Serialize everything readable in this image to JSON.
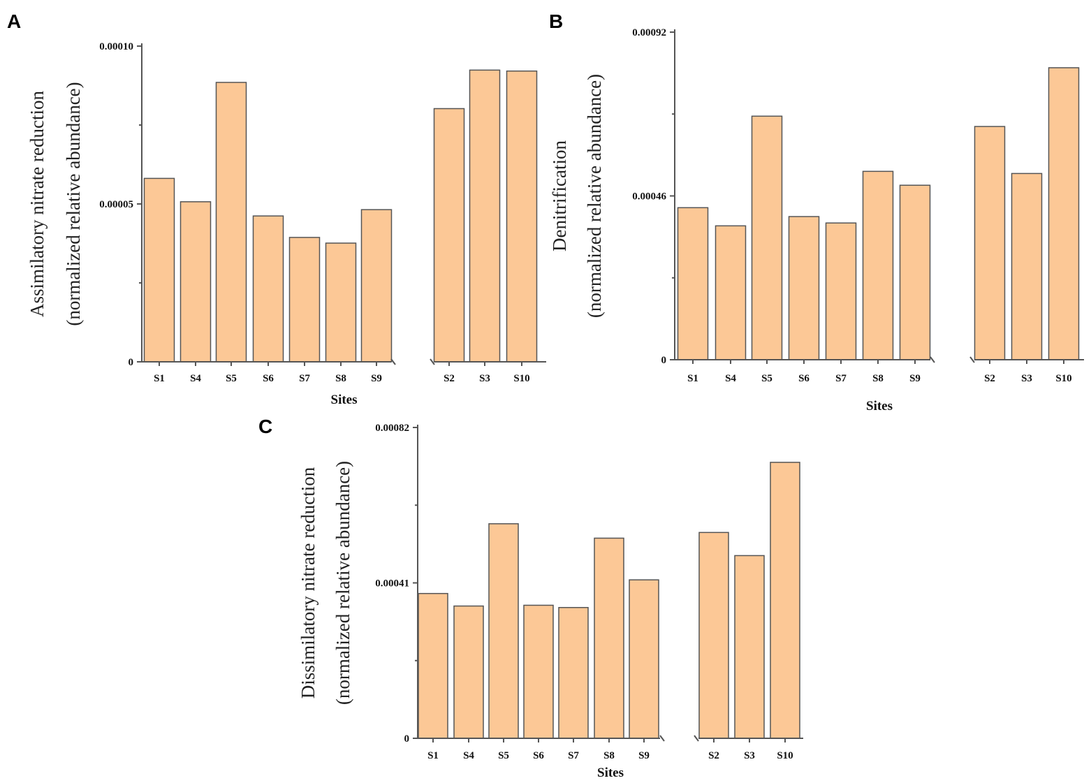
{
  "chart_data": [
    {
      "panel": "A",
      "type": "bar",
      "categories": [
        "S1",
        "S4",
        "S5",
        "S6",
        "S7",
        "S8",
        "S9",
        "S2",
        "S3",
        "S10"
      ],
      "values": [
        5.81e-05,
        5.07e-05,
        8.85e-05,
        4.62e-05,
        3.94e-05,
        3.76e-05,
        4.82e-05,
        8.02e-05,
        9.24e-05,
        9.21e-05
      ],
      "ylim": [
        0,
        0.0001
      ],
      "yticks": [
        "0",
        "0.00005",
        "0.00010"
      ],
      "xlabel": "Sites",
      "ylabel": [
        "Assimilatory nitrate reduction",
        "(normalized relative abundance)"
      ],
      "title": ""
    },
    {
      "panel": "B",
      "type": "bar",
      "categories": [
        "S1",
        "S4",
        "S5",
        "S6",
        "S7",
        "S8",
        "S9",
        "S2",
        "S3",
        "S10"
      ],
      "values": [
        0.000427,
        0.000376,
        0.000684,
        0.000402,
        0.000384,
        0.000529,
        0.00049,
        0.000655,
        0.000523,
        0.00082
      ],
      "ylim": [
        0,
        0.00092
      ],
      "yticks": [
        "0",
        "0.00046",
        "0.00092"
      ],
      "xlabel": "Sites",
      "ylabel": [
        "Denitrification",
        "(normalized relative abundance)"
      ],
      "title": ""
    },
    {
      "panel": "C",
      "type": "bar",
      "categories": [
        "S1",
        "S4",
        "S5",
        "S6",
        "S7",
        "S8",
        "S9",
        "S2",
        "S3",
        "S10"
      ],
      "values": [
        0.000382,
        0.000349,
        0.000566,
        0.000351,
        0.000345,
        0.000528,
        0.000418,
        0.000543,
        0.000482,
        0.000728
      ],
      "ylim": [
        0,
        0.00082
      ],
      "yticks": [
        "0",
        "0.00041",
        "0.00082"
      ],
      "xlabel": "Sites",
      "ylabel": [
        "Dissimilatory nitrate reduction",
        "(normalized relative abundance)"
      ],
      "title": ""
    }
  ]
}
